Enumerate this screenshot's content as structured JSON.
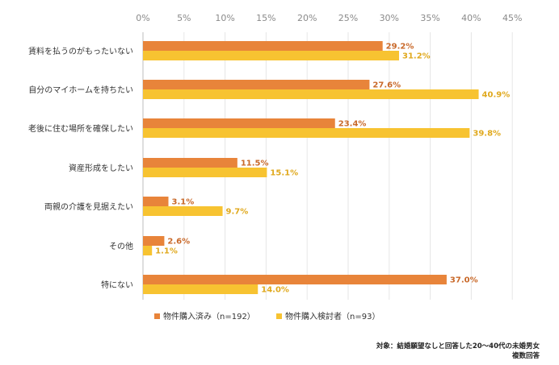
{
  "chart_data": {
    "type": "bar",
    "orientation": "horizontal",
    "categories": [
      "賃料を払うのがもったいない",
      "自分のマイホームを持ちたい",
      "老後に住む場所を確保したい",
      "資産形成をしたい",
      "両親の介護を見据えたい",
      "その他",
      "特にない"
    ],
    "series": [
      {
        "name": "物件購入済み（n=192）",
        "values": [
          29.2,
          27.6,
          23.4,
          11.5,
          3.1,
          2.6,
          37.0
        ],
        "labels": [
          "29.2%",
          "27.6%",
          "23.4%",
          "11.5%",
          "3.1%",
          "2.6%",
          "37.0%"
        ],
        "color": "#E8843A"
      },
      {
        "name": "物件購入検討者（n=93）",
        "values": [
          31.2,
          40.9,
          39.8,
          15.1,
          9.7,
          1.1,
          14.0
        ],
        "labels": [
          "31.2%",
          "40.9%",
          "39.8%",
          "15.1%",
          "9.7%",
          "1.1%",
          "14.0%"
        ],
        "color": "#F7C331"
      }
    ],
    "xlim": [
      0,
      45
    ],
    "xticks": [
      "0%",
      "5%",
      "10%",
      "15%",
      "20%",
      "25%",
      "30%",
      "35%",
      "40%",
      "45%"
    ],
    "grid": true,
    "legend": "bottom-center",
    "title": "",
    "xlabel": "",
    "ylabel": ""
  },
  "footnote": {
    "line1": "対象：結婚願望なしと回答した20〜40代の未婚男女",
    "line2": "複数回答"
  }
}
